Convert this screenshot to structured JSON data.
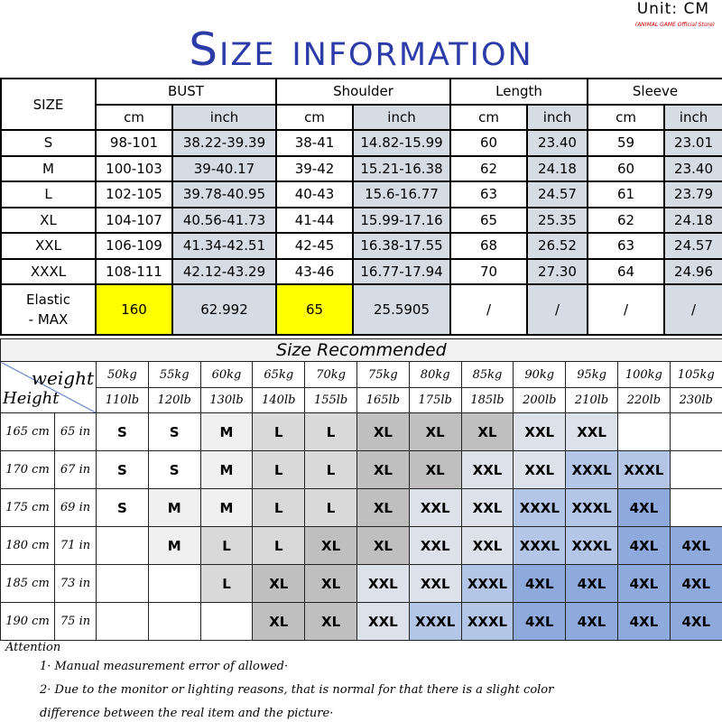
{
  "header": {
    "unit": "Unit: CM",
    "store": "(ANIMAL GAME Official Store)",
    "title": "Size information"
  },
  "size_table": {
    "size_label": "SIZE",
    "groups": [
      "BUST",
      "Shoulder",
      "Length",
      "Sleeve"
    ],
    "cm": "cm",
    "inch": "inch",
    "rows": [
      [
        "S",
        "98-101",
        "38.22-39.39",
        "38-41",
        "14.82-15.99",
        "60",
        "23.40",
        "59",
        "23.01"
      ],
      [
        "M",
        "100-103",
        "39-40.17",
        "39-42",
        "15.21-16.38",
        "62",
        "24.18",
        "60",
        "23.40"
      ],
      [
        "L",
        "102-105",
        "39.78-40.95",
        "40-43",
        "15.6-16.77",
        "63",
        "24.57",
        "61",
        "23.79"
      ],
      [
        "XL",
        "104-107",
        "40.56-41.73",
        "41-44",
        "15.99-17.16",
        "65",
        "25.35",
        "62",
        "24.18"
      ],
      [
        "XXL",
        "106-109",
        "41.34-42.51",
        "42-45",
        "16.38-17.55",
        "68",
        "26.52",
        "63",
        "24.57"
      ],
      [
        "XXXL",
        "108-111",
        "42.12-43.29",
        "43-46",
        "16.77-17.94",
        "70",
        "27.30",
        "64",
        "24.96"
      ]
    ],
    "elastic": [
      "Elastic",
      "- MAX",
      "160",
      "62.992",
      "65",
      "25.5905",
      "/",
      "/",
      "/",
      "/"
    ]
  },
  "recommend": {
    "title": "Size Recommended",
    "weight_label": "weight",
    "height_label": "Height",
    "kg": [
      "50kg",
      "55kg",
      "60kg",
      "65kg",
      "70kg",
      "75kg",
      "80kg",
      "85kg",
      "90kg",
      "95kg",
      "100kg",
      "105kg"
    ],
    "lb": [
      "110lb",
      "120lb",
      "130lb",
      "140lb",
      "155lb",
      "165lb",
      "175lb",
      "185lb",
      "200lb",
      "210lb",
      "220lb",
      "230lb"
    ],
    "rows": [
      {
        "cm": "165 cm",
        "in": "65 in",
        "sizes": [
          "S",
          "S",
          "M",
          "L",
          "L",
          "XL",
          "XL",
          "XL",
          "XXL",
          "XXL",
          "",
          ""
        ]
      },
      {
        "cm": "170 cm",
        "in": "67 in",
        "sizes": [
          "S",
          "S",
          "M",
          "L",
          "L",
          "XL",
          "XL",
          "XXL",
          "XXL",
          "XXXL",
          "XXXL",
          ""
        ]
      },
      {
        "cm": "175 cm",
        "in": "69 in",
        "sizes": [
          "S",
          "M",
          "M",
          "L",
          "L",
          "XL",
          "XXL",
          "XXL",
          "XXXL",
          "XXXL",
          "4XL",
          ""
        ]
      },
      {
        "cm": "180 cm",
        "in": "71 in",
        "sizes": [
          "",
          "M",
          "L",
          "L",
          "XL",
          "XL",
          "XXL",
          "XXL",
          "XXXL",
          "XXXL",
          "4XL",
          "4XL"
        ]
      },
      {
        "cm": "185 cm",
        "in": "73 in",
        "sizes": [
          "",
          "",
          "L",
          "XL",
          "XL",
          "XXL",
          "XXL",
          "XXXL",
          "4XL",
          "4XL",
          "4XL",
          "4XL"
        ]
      },
      {
        "cm": "190 cm",
        "in": "75 in",
        "sizes": [
          "",
          "",
          "",
          "XL",
          "XL",
          "XXL",
          "XXXL",
          "XXXL",
          "4XL",
          "4XL",
          "4XL",
          "4XL"
        ]
      }
    ],
    "colors": {
      "S": "#ffffff",
      "M": "#f0f0f0",
      "L": "#d9d9d9",
      "XL": "#bfbfbf",
      "XXL": "#dce1ea",
      "XXXL": "#b4c6e7",
      "4XL": "#8ea9db",
      "": "#ffffff"
    }
  },
  "attention": {
    "title": "Attention",
    "notes": [
      "1· Manual measurement error of allowed·",
      "2·  Due to the monitor or lighting reasons, that is normal for that there is a slight color",
      "difference between the real item and the picture·"
    ]
  }
}
